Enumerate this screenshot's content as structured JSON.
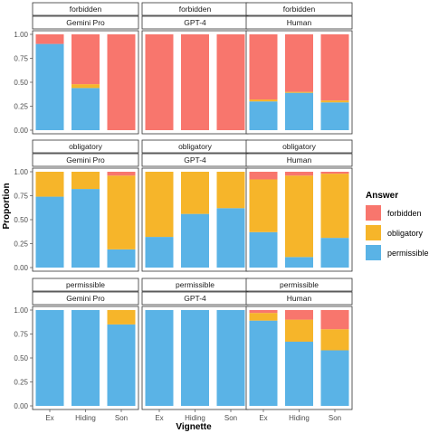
{
  "chart_data": {
    "type": "bar",
    "stacked": true,
    "xlabel": "Vignette",
    "ylabel": "Proportion",
    "ylim": [
      0,
      1
    ],
    "yticks": [
      "0.00",
      "0.25",
      "0.50",
      "0.75",
      "1.00"
    ],
    "yticks_values": [
      0,
      0.25,
      0.5,
      0.75,
      1.0
    ],
    "categories": [
      "Ex",
      "Hiding",
      "Son"
    ],
    "legend": {
      "title": "Answer",
      "position": "right",
      "entries": [
        {
          "name": "forbidden",
          "color": "#F8766D"
        },
        {
          "name": "obligatory",
          "color": "#F6B52A"
        },
        {
          "name": "permissible",
          "color": "#5AB3E6"
        }
      ]
    },
    "stack_order_bottom_to_top": [
      "permissible",
      "obligatory",
      "forbidden"
    ],
    "rows": [
      {
        "label": "forbidden",
        "panels": [
          {
            "label": "Gemini Pro",
            "values": {
              "permissible": [
                0.9,
                0.44,
                0.0
              ],
              "obligatory": [
                0.0,
                0.04,
                0.0
              ],
              "forbidden": [
                0.1,
                0.52,
                1.0
              ]
            }
          },
          {
            "label": "GPT-4",
            "values": {
              "permissible": [
                0.0,
                0.0,
                0.0
              ],
              "obligatory": [
                0.0,
                0.0,
                0.0
              ],
              "forbidden": [
                1.0,
                1.0,
                1.0
              ]
            }
          },
          {
            "label": "Human",
            "values": {
              "permissible": [
                0.3,
                0.39,
                0.29
              ],
              "obligatory": [
                0.02,
                0.01,
                0.02
              ],
              "forbidden": [
                0.68,
                0.6,
                0.69
              ]
            }
          }
        ]
      },
      {
        "label": "obligatory",
        "panels": [
          {
            "label": "Gemini Pro",
            "values": {
              "permissible": [
                0.74,
                0.82,
                0.19
              ],
              "obligatory": [
                0.26,
                0.18,
                0.77
              ],
              "forbidden": [
                0.0,
                0.0,
                0.04
              ]
            }
          },
          {
            "label": "GPT-4",
            "values": {
              "permissible": [
                0.32,
                0.56,
                0.62
              ],
              "obligatory": [
                0.68,
                0.44,
                0.38
              ],
              "forbidden": [
                0.0,
                0.0,
                0.0
              ]
            }
          },
          {
            "label": "Human",
            "values": {
              "permissible": [
                0.37,
                0.11,
                0.31
              ],
              "obligatory": [
                0.55,
                0.85,
                0.67
              ],
              "forbidden": [
                0.08,
                0.04,
                0.02
              ]
            }
          }
        ]
      },
      {
        "label": "permissible",
        "panels": [
          {
            "label": "Gemini Pro",
            "values": {
              "permissible": [
                1.0,
                1.0,
                0.85
              ],
              "obligatory": [
                0.0,
                0.0,
                0.15
              ],
              "forbidden": [
                0.0,
                0.0,
                0.0
              ]
            }
          },
          {
            "label": "GPT-4",
            "values": {
              "permissible": [
                1.0,
                1.0,
                1.0
              ],
              "obligatory": [
                0.0,
                0.0,
                0.0
              ],
              "forbidden": [
                0.0,
                0.0,
                0.0
              ]
            }
          },
          {
            "label": "Human",
            "values": {
              "permissible": [
                0.89,
                0.67,
                0.58
              ],
              "obligatory": [
                0.08,
                0.23,
                0.22
              ],
              "forbidden": [
                0.03,
                0.1,
                0.2
              ]
            }
          }
        ]
      }
    ]
  }
}
